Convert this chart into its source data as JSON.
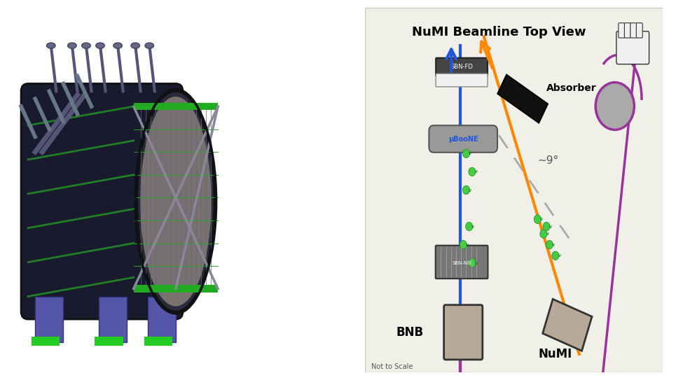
{
  "bg_color": "#f0f0e8",
  "title": "NuMI Beamline Top View",
  "title_fontsize": 13,
  "bnb_label": "BNB",
  "numi_label": "NuMI",
  "absorber_label": "Absorber",
  "not_to_scale": "Not to Scale",
  "angle_label": "~9°",
  "uboone_label": "μBooNE",
  "bnb_box_color": "#b8a898",
  "numi_box_color": "#b8a898",
  "absorber_box_color": "#111111",
  "sbnfd_box_top_color": "#444444",
  "sbnfd_box_bot_color": "#f0f0f0",
  "uboone_cyl_color": "#888888",
  "blue_line_color": "#2255dd",
  "orange_line_color": "#ff8800",
  "purple_line_color": "#993399",
  "green_dot_color": "#44cc44",
  "gray_dash_color": "#aaaaaa",
  "circle_color": "#888888",
  "circle_outline": "#993399"
}
